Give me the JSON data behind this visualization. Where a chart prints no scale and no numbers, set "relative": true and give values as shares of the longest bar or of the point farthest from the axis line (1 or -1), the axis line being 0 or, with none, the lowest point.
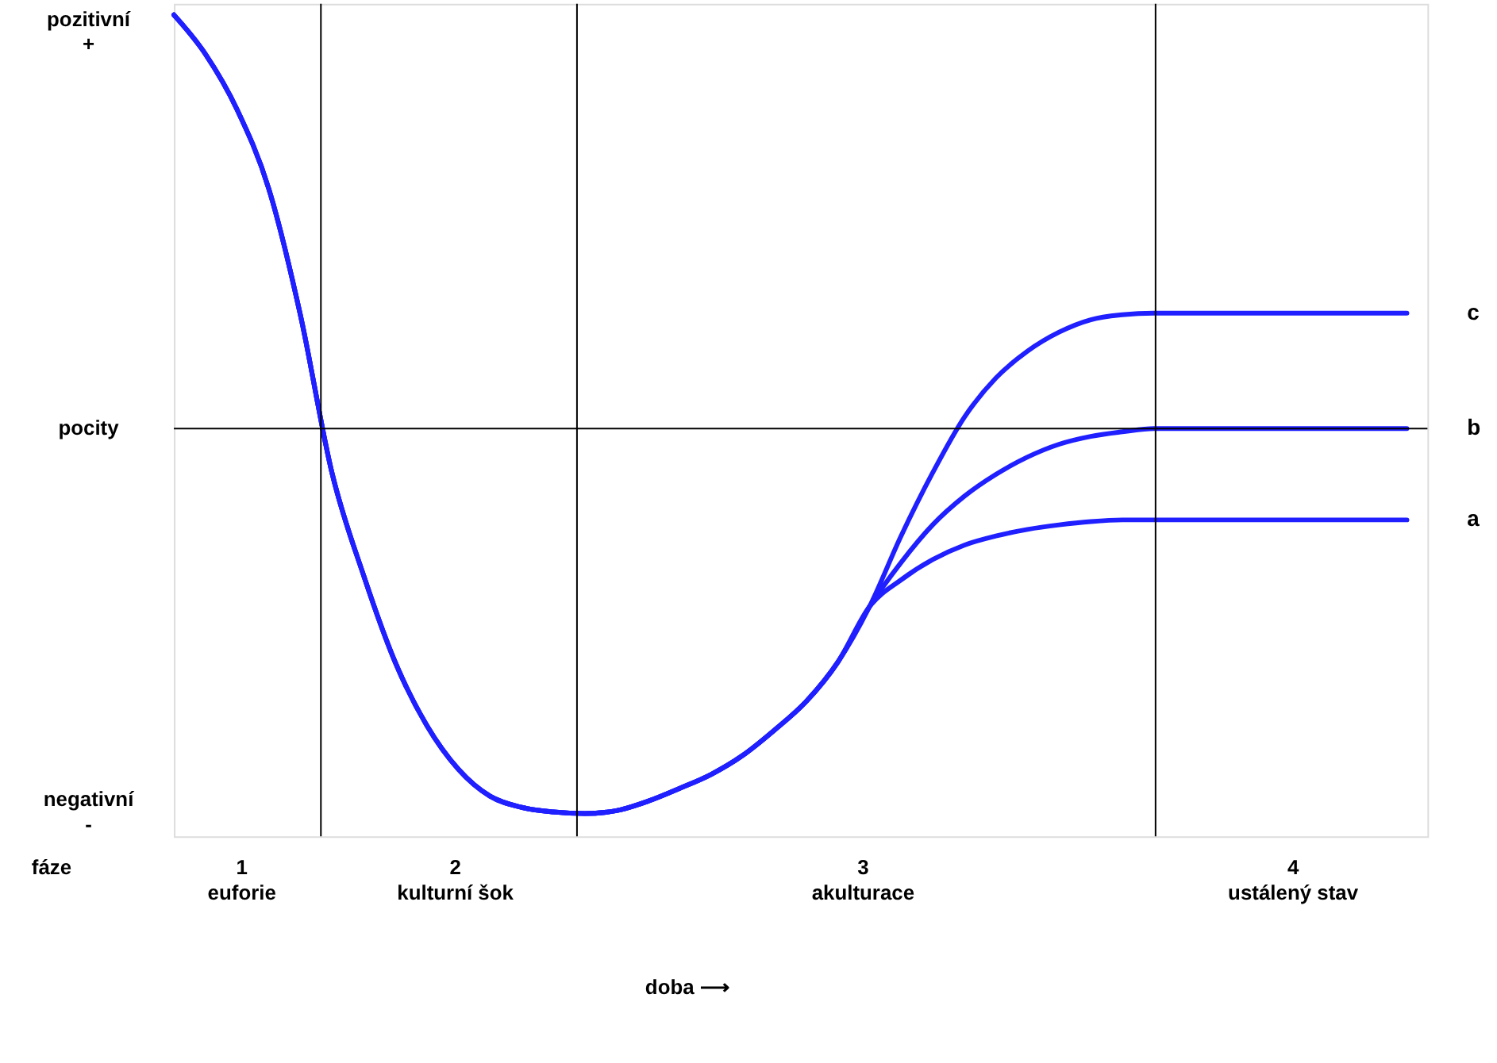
{
  "chart_data": {
    "type": "line",
    "relative": true,
    "categories": [
      null,
      null,
      null,
      null,
      null,
      null,
      null,
      null,
      null,
      null,
      null,
      null,
      null,
      null,
      null,
      null,
      null,
      null,
      null,
      null,
      null,
      null,
      null,
      null,
      null,
      null,
      null,
      null,
      null,
      null,
      null,
      null,
      null,
      null,
      null,
      null,
      null,
      null,
      null,
      null
    ],
    "series": [
      {
        "name": "c",
        "color": "#1f1fff",
        "values": [
          1.0,
          0.905,
          0.771,
          0.58,
          0.275,
          -0.107,
          -0.355,
          -0.565,
          -0.718,
          -0.824,
          -0.889,
          -0.916,
          -0.927,
          -0.931,
          -0.924,
          -0.901,
          -0.87,
          -0.836,
          -0.79,
          -0.729,
          -0.66,
          -0.565,
          -0.431,
          -0.26,
          -0.107,
          0.027,
          0.122,
          0.187,
          0.233,
          0.263,
          0.275,
          0.279,
          0.279,
          0.279,
          0.279,
          0.279,
          0.279,
          0.279,
          0.279,
          0.279
        ]
      },
      {
        "name": "b",
        "color": "#1f1fff",
        "values": [
          1.0,
          0.905,
          0.771,
          0.58,
          0.275,
          -0.107,
          -0.355,
          -0.565,
          -0.718,
          -0.824,
          -0.889,
          -0.916,
          -0.927,
          -0.931,
          -0.924,
          -0.901,
          -0.87,
          -0.836,
          -0.79,
          -0.729,
          -0.66,
          -0.565,
          -0.431,
          -0.324,
          -0.233,
          -0.164,
          -0.111,
          -0.069,
          -0.038,
          -0.019,
          -0.008,
          0,
          0,
          0,
          0,
          0,
          0,
          0,
          0,
          0
        ]
      },
      {
        "name": "a",
        "color": "#1f1fff",
        "values": [
          1.0,
          0.905,
          0.771,
          0.58,
          0.275,
          -0.107,
          -0.355,
          -0.565,
          -0.718,
          -0.824,
          -0.889,
          -0.916,
          -0.927,
          -0.931,
          -0.924,
          -0.901,
          -0.87,
          -0.836,
          -0.79,
          -0.729,
          -0.66,
          -0.565,
          -0.431,
          -0.366,
          -0.317,
          -0.282,
          -0.26,
          -0.244,
          -0.233,
          -0.225,
          -0.221,
          -0.221,
          -0.221,
          -0.221,
          -0.221,
          -0.221,
          -0.221,
          -0.221,
          -0.221,
          -0.221
        ]
      }
    ],
    "ref_lines": [
      {
        "axis": "y",
        "value": 0,
        "label": "pocity"
      }
    ],
    "annotations": [
      "pozitivní\n+",
      "negativní\n-",
      "fáze",
      "1\neuforie",
      "2\nkulturní šok",
      "3\nakulturace",
      "4\nustálený stav",
      "doba ⟶"
    ],
    "legend": false
  }
}
